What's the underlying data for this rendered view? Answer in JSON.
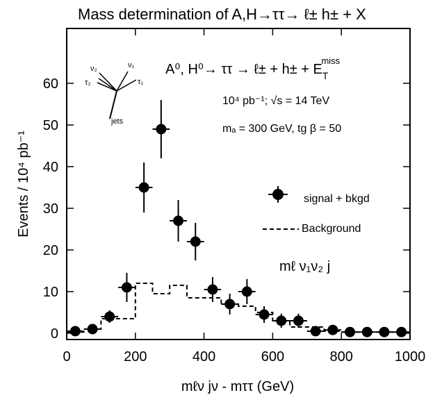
{
  "header": {
    "title": "Mass determination of A,H→ττ→ ℓ± h± + X"
  },
  "annotations": {
    "process": "A⁰, H⁰→ ττ → ℓ± + h± + E",
    "process_sub": "T",
    "process_sup": "miss",
    "lumi": "10⁴ pb⁻¹; √s = 14 TeV",
    "params": "mₐ = 300 GeV, tg β = 50",
    "variable": "mℓ ν₁ν₂ j",
    "topo_v1": "ν₁",
    "topo_v2": "ν₂",
    "topo_t1": "τ₁",
    "topo_t2": "τ₂",
    "topo_jets": "jets"
  },
  "chart_data": {
    "type": "scatter",
    "title": "Mass determination of A,H→ττ→ ℓ± h± + X",
    "xlabel": "mℓν jν - mττ (GeV)",
    "ylabel": "Events / 10⁴ pb⁻¹",
    "xlim": [
      0,
      1000
    ],
    "ylim": [
      0,
      70
    ],
    "xticks": [
      0,
      200,
      400,
      600,
      800,
      1000
    ],
    "yticks": [
      0,
      10,
      20,
      30,
      40,
      50,
      60
    ],
    "legend_position": "right",
    "legend": [
      {
        "name": "signal + bkgd",
        "marker": "filled-circle-with-errors"
      },
      {
        "name": "Background",
        "marker": "dashed-line"
      }
    ],
    "series": [
      {
        "name": "signal + bkgd",
        "type": "points",
        "x": [
          25,
          75,
          125,
          175,
          225,
          275,
          325,
          375,
          425,
          475,
          525,
          575,
          625,
          675,
          725,
          775,
          825,
          875,
          925,
          975
        ],
        "y": [
          0.5,
          1.0,
          4.0,
          11.0,
          35.0,
          49.0,
          27.0,
          22.0,
          10.5,
          7.0,
          10.0,
          4.5,
          3.0,
          3.0,
          0.5,
          0.8,
          0.3,
          0.3,
          0.3,
          0.3
        ],
        "yerr": [
          0.7,
          1.0,
          1.5,
          3.5,
          6.0,
          7.0,
          5.0,
          4.5,
          3.0,
          2.5,
          3.0,
          2.0,
          1.7,
          1.7,
          0.7,
          0.9,
          0.6,
          0.6,
          0.6,
          0.6
        ],
        "xerr": 25
      },
      {
        "name": "Background",
        "type": "step",
        "x_edges": [
          0,
          50,
          100,
          150,
          200,
          250,
          300,
          350,
          400,
          450,
          500,
          550,
          600,
          650,
          700,
          750,
          800,
          850,
          900,
          950,
          1000
        ],
        "y": [
          0.3,
          1.0,
          3.5,
          3.5,
          12.0,
          9.5,
          11.5,
          8.5,
          8.5,
          7.0,
          6.5,
          5.0,
          3.0,
          1.5,
          1.5,
          0.5,
          0.3,
          0.3,
          0.3,
          0.3
        ]
      }
    ]
  }
}
